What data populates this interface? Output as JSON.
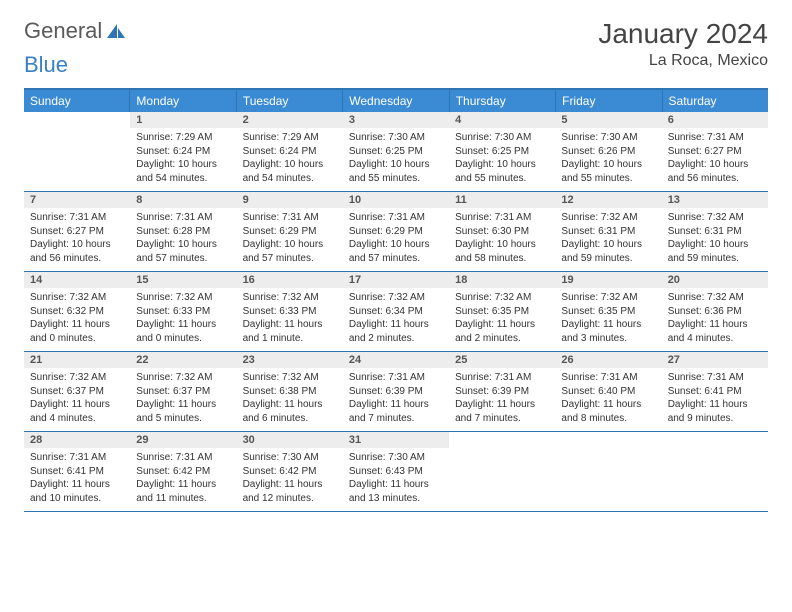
{
  "logo": {
    "word1": "General",
    "word2": "Blue"
  },
  "title": "January 2024",
  "location": "La Roca, Mexico",
  "colors": {
    "header_bg": "#3b8bd4",
    "header_border": "#2f74b5",
    "daynum_bg": "#ededed",
    "text": "#333333",
    "logo_gray": "#5a5a5a",
    "logo_blue": "#3b7fc4"
  },
  "day_headers": [
    "Sunday",
    "Monday",
    "Tuesday",
    "Wednesday",
    "Thursday",
    "Friday",
    "Saturday"
  ],
  "weeks": [
    [
      {
        "num": "",
        "sunrise": "",
        "sunset": "",
        "daylight": ""
      },
      {
        "num": "1",
        "sunrise": "Sunrise: 7:29 AM",
        "sunset": "Sunset: 6:24 PM",
        "daylight": "Daylight: 10 hours and 54 minutes."
      },
      {
        "num": "2",
        "sunrise": "Sunrise: 7:29 AM",
        "sunset": "Sunset: 6:24 PM",
        "daylight": "Daylight: 10 hours and 54 minutes."
      },
      {
        "num": "3",
        "sunrise": "Sunrise: 7:30 AM",
        "sunset": "Sunset: 6:25 PM",
        "daylight": "Daylight: 10 hours and 55 minutes."
      },
      {
        "num": "4",
        "sunrise": "Sunrise: 7:30 AM",
        "sunset": "Sunset: 6:25 PM",
        "daylight": "Daylight: 10 hours and 55 minutes."
      },
      {
        "num": "5",
        "sunrise": "Sunrise: 7:30 AM",
        "sunset": "Sunset: 6:26 PM",
        "daylight": "Daylight: 10 hours and 55 minutes."
      },
      {
        "num": "6",
        "sunrise": "Sunrise: 7:31 AM",
        "sunset": "Sunset: 6:27 PM",
        "daylight": "Daylight: 10 hours and 56 minutes."
      }
    ],
    [
      {
        "num": "7",
        "sunrise": "Sunrise: 7:31 AM",
        "sunset": "Sunset: 6:27 PM",
        "daylight": "Daylight: 10 hours and 56 minutes."
      },
      {
        "num": "8",
        "sunrise": "Sunrise: 7:31 AM",
        "sunset": "Sunset: 6:28 PM",
        "daylight": "Daylight: 10 hours and 57 minutes."
      },
      {
        "num": "9",
        "sunrise": "Sunrise: 7:31 AM",
        "sunset": "Sunset: 6:29 PM",
        "daylight": "Daylight: 10 hours and 57 minutes."
      },
      {
        "num": "10",
        "sunrise": "Sunrise: 7:31 AM",
        "sunset": "Sunset: 6:29 PM",
        "daylight": "Daylight: 10 hours and 57 minutes."
      },
      {
        "num": "11",
        "sunrise": "Sunrise: 7:31 AM",
        "sunset": "Sunset: 6:30 PM",
        "daylight": "Daylight: 10 hours and 58 minutes."
      },
      {
        "num": "12",
        "sunrise": "Sunrise: 7:32 AM",
        "sunset": "Sunset: 6:31 PM",
        "daylight": "Daylight: 10 hours and 59 minutes."
      },
      {
        "num": "13",
        "sunrise": "Sunrise: 7:32 AM",
        "sunset": "Sunset: 6:31 PM",
        "daylight": "Daylight: 10 hours and 59 minutes."
      }
    ],
    [
      {
        "num": "14",
        "sunrise": "Sunrise: 7:32 AM",
        "sunset": "Sunset: 6:32 PM",
        "daylight": "Daylight: 11 hours and 0 minutes."
      },
      {
        "num": "15",
        "sunrise": "Sunrise: 7:32 AM",
        "sunset": "Sunset: 6:33 PM",
        "daylight": "Daylight: 11 hours and 0 minutes."
      },
      {
        "num": "16",
        "sunrise": "Sunrise: 7:32 AM",
        "sunset": "Sunset: 6:33 PM",
        "daylight": "Daylight: 11 hours and 1 minute."
      },
      {
        "num": "17",
        "sunrise": "Sunrise: 7:32 AM",
        "sunset": "Sunset: 6:34 PM",
        "daylight": "Daylight: 11 hours and 2 minutes."
      },
      {
        "num": "18",
        "sunrise": "Sunrise: 7:32 AM",
        "sunset": "Sunset: 6:35 PM",
        "daylight": "Daylight: 11 hours and 2 minutes."
      },
      {
        "num": "19",
        "sunrise": "Sunrise: 7:32 AM",
        "sunset": "Sunset: 6:35 PM",
        "daylight": "Daylight: 11 hours and 3 minutes."
      },
      {
        "num": "20",
        "sunrise": "Sunrise: 7:32 AM",
        "sunset": "Sunset: 6:36 PM",
        "daylight": "Daylight: 11 hours and 4 minutes."
      }
    ],
    [
      {
        "num": "21",
        "sunrise": "Sunrise: 7:32 AM",
        "sunset": "Sunset: 6:37 PM",
        "daylight": "Daylight: 11 hours and 4 minutes."
      },
      {
        "num": "22",
        "sunrise": "Sunrise: 7:32 AM",
        "sunset": "Sunset: 6:37 PM",
        "daylight": "Daylight: 11 hours and 5 minutes."
      },
      {
        "num": "23",
        "sunrise": "Sunrise: 7:32 AM",
        "sunset": "Sunset: 6:38 PM",
        "daylight": "Daylight: 11 hours and 6 minutes."
      },
      {
        "num": "24",
        "sunrise": "Sunrise: 7:31 AM",
        "sunset": "Sunset: 6:39 PM",
        "daylight": "Daylight: 11 hours and 7 minutes."
      },
      {
        "num": "25",
        "sunrise": "Sunrise: 7:31 AM",
        "sunset": "Sunset: 6:39 PM",
        "daylight": "Daylight: 11 hours and 7 minutes."
      },
      {
        "num": "26",
        "sunrise": "Sunrise: 7:31 AM",
        "sunset": "Sunset: 6:40 PM",
        "daylight": "Daylight: 11 hours and 8 minutes."
      },
      {
        "num": "27",
        "sunrise": "Sunrise: 7:31 AM",
        "sunset": "Sunset: 6:41 PM",
        "daylight": "Daylight: 11 hours and 9 minutes."
      }
    ],
    [
      {
        "num": "28",
        "sunrise": "Sunrise: 7:31 AM",
        "sunset": "Sunset: 6:41 PM",
        "daylight": "Daylight: 11 hours and 10 minutes."
      },
      {
        "num": "29",
        "sunrise": "Sunrise: 7:31 AM",
        "sunset": "Sunset: 6:42 PM",
        "daylight": "Daylight: 11 hours and 11 minutes."
      },
      {
        "num": "30",
        "sunrise": "Sunrise: 7:30 AM",
        "sunset": "Sunset: 6:42 PM",
        "daylight": "Daylight: 11 hours and 12 minutes."
      },
      {
        "num": "31",
        "sunrise": "Sunrise: 7:30 AM",
        "sunset": "Sunset: 6:43 PM",
        "daylight": "Daylight: 11 hours and 13 minutes."
      },
      {
        "num": "",
        "sunrise": "",
        "sunset": "",
        "daylight": ""
      },
      {
        "num": "",
        "sunrise": "",
        "sunset": "",
        "daylight": ""
      },
      {
        "num": "",
        "sunrise": "",
        "sunset": "",
        "daylight": ""
      }
    ]
  ]
}
